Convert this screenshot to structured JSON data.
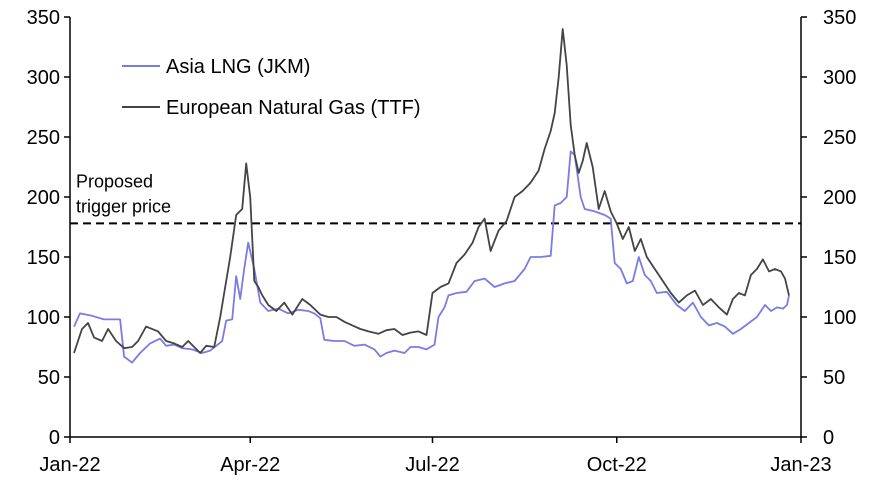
{
  "chart_data": {
    "type": "line",
    "title": "",
    "xlabel": "",
    "ylabel": "",
    "ylim": [
      0,
      350
    ],
    "yticks": [
      "0",
      "50",
      "100",
      "150",
      "200",
      "250",
      "300",
      "350"
    ],
    "xlim": [
      "2022-01-01",
      "2023-01-01"
    ],
    "xticks": [
      {
        "date": "2022-01-01",
        "label": "Jan-22"
      },
      {
        "date": "2022-04-01",
        "label": "Apr-22"
      },
      {
        "date": "2022-07-01",
        "label": "Jul-22"
      },
      {
        "date": "2022-10-01",
        "label": "Oct-22"
      },
      {
        "date": "2023-01-01",
        "label": "Jan-23"
      }
    ],
    "legend_position": "top-left",
    "grid": false,
    "annotation": {
      "lines": [
        "Proposed",
        "trigger price"
      ],
      "value": 178
    },
    "series": [
      {
        "name": "Asia LNG (JKM)",
        "color": "#7b7be6",
        "points": [
          [
            "2022-01-03",
            92
          ],
          [
            "2022-01-06",
            103
          ],
          [
            "2022-01-12",
            101
          ],
          [
            "2022-01-18",
            98
          ],
          [
            "2022-01-26",
            98
          ],
          [
            "2022-01-28",
            67
          ],
          [
            "2022-02-01",
            62
          ],
          [
            "2022-02-05",
            70
          ],
          [
            "2022-02-10",
            78
          ],
          [
            "2022-02-15",
            82
          ],
          [
            "2022-02-18",
            76
          ],
          [
            "2022-02-22",
            77
          ],
          [
            "2022-02-26",
            74
          ],
          [
            "2022-03-03",
            73
          ],
          [
            "2022-03-08",
            70
          ],
          [
            "2022-03-12",
            72
          ],
          [
            "2022-03-15",
            76
          ],
          [
            "2022-03-18",
            80
          ],
          [
            "2022-03-20",
            97
          ],
          [
            "2022-03-23",
            98
          ],
          [
            "2022-03-25",
            134
          ],
          [
            "2022-03-27",
            115
          ],
          [
            "2022-03-29",
            140
          ],
          [
            "2022-03-31",
            162
          ],
          [
            "2022-04-03",
            140
          ],
          [
            "2022-04-06",
            112
          ],
          [
            "2022-04-10",
            105
          ],
          [
            "2022-04-15",
            107
          ],
          [
            "2022-04-20",
            103
          ],
          [
            "2022-04-25",
            106
          ],
          [
            "2022-04-30",
            105
          ],
          [
            "2022-05-03",
            103
          ],
          [
            "2022-05-06",
            99
          ],
          [
            "2022-05-08",
            81
          ],
          [
            "2022-05-13",
            80
          ],
          [
            "2022-05-18",
            80
          ],
          [
            "2022-05-23",
            76
          ],
          [
            "2022-05-28",
            77
          ],
          [
            "2022-06-02",
            73
          ],
          [
            "2022-06-05",
            67
          ],
          [
            "2022-06-08",
            70
          ],
          [
            "2022-06-12",
            72
          ],
          [
            "2022-06-17",
            70
          ],
          [
            "2022-06-20",
            75
          ],
          [
            "2022-06-24",
            75
          ],
          [
            "2022-06-28",
            73
          ],
          [
            "2022-07-02",
            77
          ],
          [
            "2022-07-04",
            100
          ],
          [
            "2022-07-07",
            108
          ],
          [
            "2022-07-09",
            118
          ],
          [
            "2022-07-13",
            120
          ],
          [
            "2022-07-18",
            121
          ],
          [
            "2022-07-22",
            130
          ],
          [
            "2022-07-27",
            132
          ],
          [
            "2022-08-01",
            125
          ],
          [
            "2022-08-06",
            128
          ],
          [
            "2022-08-11",
            130
          ],
          [
            "2022-08-16",
            140
          ],
          [
            "2022-08-19",
            150
          ],
          [
            "2022-08-24",
            150
          ],
          [
            "2022-08-29",
            151
          ],
          [
            "2022-08-31",
            193
          ],
          [
            "2022-09-03",
            195
          ],
          [
            "2022-09-06",
            200
          ],
          [
            "2022-09-08",
            238
          ],
          [
            "2022-09-10",
            235
          ],
          [
            "2022-09-13",
            200
          ],
          [
            "2022-09-15",
            190
          ],
          [
            "2022-09-20",
            188
          ],
          [
            "2022-09-25",
            185
          ],
          [
            "2022-09-28",
            182
          ],
          [
            "2022-09-30",
            145
          ],
          [
            "2022-10-03",
            140
          ],
          [
            "2022-10-06",
            128
          ],
          [
            "2022-10-09",
            130
          ],
          [
            "2022-10-12",
            150
          ],
          [
            "2022-10-15",
            135
          ],
          [
            "2022-10-18",
            130
          ],
          [
            "2022-10-21",
            120
          ],
          [
            "2022-10-26",
            121
          ],
          [
            "2022-10-31",
            110
          ],
          [
            "2022-11-04",
            105
          ],
          [
            "2022-11-08",
            112
          ],
          [
            "2022-11-12",
            100
          ],
          [
            "2022-11-16",
            93
          ],
          [
            "2022-11-20",
            95
          ],
          [
            "2022-11-24",
            92
          ],
          [
            "2022-11-28",
            86
          ],
          [
            "2022-12-02",
            90
          ],
          [
            "2022-12-06",
            95
          ],
          [
            "2022-12-10",
            100
          ],
          [
            "2022-12-14",
            110
          ],
          [
            "2022-12-17",
            105
          ],
          [
            "2022-12-20",
            108
          ],
          [
            "2022-12-23",
            107
          ],
          [
            "2022-12-25",
            110
          ],
          [
            "2022-12-26",
            118
          ]
        ]
      },
      {
        "name": "European Natural Gas (TTF)",
        "color": "#444444",
        "points": [
          [
            "2022-01-03",
            70
          ],
          [
            "2022-01-07",
            90
          ],
          [
            "2022-01-10",
            95
          ],
          [
            "2022-01-13",
            83
          ],
          [
            "2022-01-17",
            80
          ],
          [
            "2022-01-20",
            90
          ],
          [
            "2022-01-24",
            80
          ],
          [
            "2022-01-28",
            74
          ],
          [
            "2022-02-01",
            75
          ],
          [
            "2022-02-04",
            80
          ],
          [
            "2022-02-08",
            92
          ],
          [
            "2022-02-14",
            88
          ],
          [
            "2022-02-18",
            80
          ],
          [
            "2022-02-22",
            78
          ],
          [
            "2022-02-26",
            75
          ],
          [
            "2022-03-01",
            80
          ],
          [
            "2022-03-04",
            75
          ],
          [
            "2022-03-07",
            70
          ],
          [
            "2022-03-10",
            76
          ],
          [
            "2022-03-14",
            75
          ],
          [
            "2022-03-17",
            100
          ],
          [
            "2022-03-20",
            130
          ],
          [
            "2022-03-22",
            150
          ],
          [
            "2022-03-25",
            185
          ],
          [
            "2022-03-28",
            190
          ],
          [
            "2022-03-30",
            228
          ],
          [
            "2022-04-01",
            200
          ],
          [
            "2022-04-03",
            130
          ],
          [
            "2022-04-05",
            125
          ],
          [
            "2022-04-07",
            118
          ],
          [
            "2022-04-10",
            110
          ],
          [
            "2022-04-14",
            105
          ],
          [
            "2022-04-18",
            112
          ],
          [
            "2022-04-22",
            102
          ],
          [
            "2022-04-27",
            115
          ],
          [
            "2022-05-01",
            110
          ],
          [
            "2022-05-06",
            102
          ],
          [
            "2022-05-10",
            100
          ],
          [
            "2022-05-14",
            100
          ],
          [
            "2022-05-18",
            96
          ],
          [
            "2022-05-22",
            93
          ],
          [
            "2022-05-26",
            90
          ],
          [
            "2022-05-30",
            88
          ],
          [
            "2022-06-04",
            86
          ],
          [
            "2022-06-08",
            89
          ],
          [
            "2022-06-12",
            90
          ],
          [
            "2022-06-16",
            85
          ],
          [
            "2022-06-20",
            87
          ],
          [
            "2022-06-24",
            88
          ],
          [
            "2022-06-28",
            85
          ],
          [
            "2022-07-01",
            120
          ],
          [
            "2022-07-05",
            125
          ],
          [
            "2022-07-09",
            128
          ],
          [
            "2022-07-13",
            145
          ],
          [
            "2022-07-17",
            152
          ],
          [
            "2022-07-21",
            162
          ],
          [
            "2022-07-24",
            175
          ],
          [
            "2022-07-27",
            182
          ],
          [
            "2022-07-30",
            155
          ],
          [
            "2022-08-03",
            172
          ],
          [
            "2022-08-07",
            180
          ],
          [
            "2022-08-11",
            200
          ],
          [
            "2022-08-15",
            205
          ],
          [
            "2022-08-19",
            212
          ],
          [
            "2022-08-23",
            222
          ],
          [
            "2022-08-26",
            240
          ],
          [
            "2022-08-29",
            255
          ],
          [
            "2022-08-31",
            270
          ],
          [
            "2022-09-02",
            300
          ],
          [
            "2022-09-04",
            340
          ],
          [
            "2022-09-06",
            310
          ],
          [
            "2022-09-08",
            260
          ],
          [
            "2022-09-10",
            235
          ],
          [
            "2022-09-12",
            220
          ],
          [
            "2022-09-14",
            230
          ],
          [
            "2022-09-16",
            245
          ],
          [
            "2022-09-19",
            225
          ],
          [
            "2022-09-22",
            190
          ],
          [
            "2022-09-25",
            205
          ],
          [
            "2022-09-28",
            188
          ],
          [
            "2022-10-01",
            178
          ],
          [
            "2022-10-04",
            165
          ],
          [
            "2022-10-07",
            175
          ],
          [
            "2022-10-10",
            155
          ],
          [
            "2022-10-13",
            165
          ],
          [
            "2022-10-16",
            150
          ],
          [
            "2022-10-20",
            140
          ],
          [
            "2022-10-24",
            130
          ],
          [
            "2022-10-28",
            120
          ],
          [
            "2022-11-01",
            112
          ],
          [
            "2022-11-05",
            118
          ],
          [
            "2022-11-09",
            122
          ],
          [
            "2022-11-13",
            110
          ],
          [
            "2022-11-17",
            115
          ],
          [
            "2022-11-21",
            108
          ],
          [
            "2022-11-25",
            102
          ],
          [
            "2022-11-28",
            115
          ],
          [
            "2022-12-01",
            120
          ],
          [
            "2022-12-04",
            118
          ],
          [
            "2022-12-07",
            135
          ],
          [
            "2022-12-10",
            140
          ],
          [
            "2022-12-13",
            148
          ],
          [
            "2022-12-16",
            138
          ],
          [
            "2022-12-19",
            140
          ],
          [
            "2022-12-22",
            138
          ],
          [
            "2022-12-24",
            132
          ],
          [
            "2022-12-26",
            118
          ]
        ]
      }
    ]
  }
}
